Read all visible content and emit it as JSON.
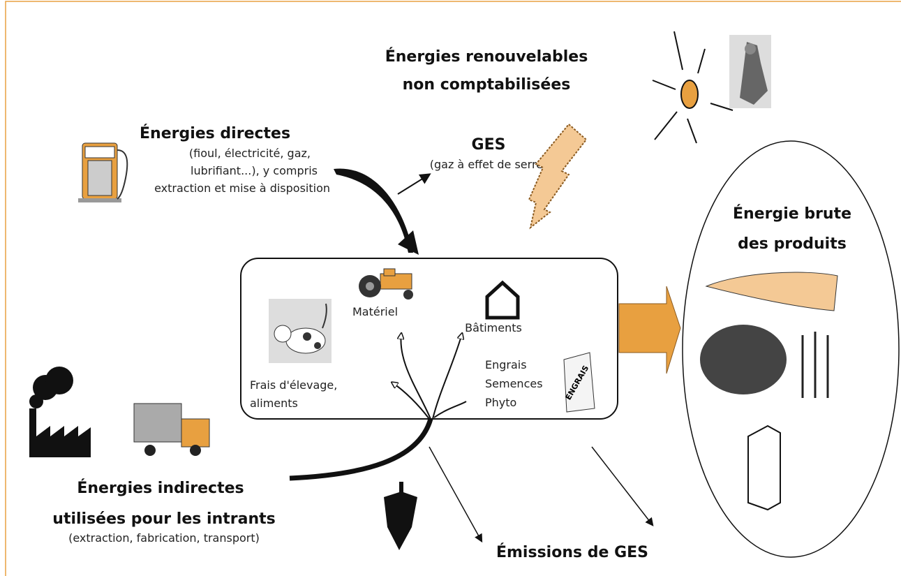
{
  "renewable": {
    "lines": [
      "Énergies renouvelables",
      "non comptabilisées"
    ]
  },
  "direct": {
    "title": "Énergies directes",
    "details": [
      "(fioul, électricité, gaz,",
      "lubrifiant...), y compris",
      "extraction et mise à disposition"
    ]
  },
  "ghg": {
    "title": "GES",
    "subtitle": "(gaz à effet de serre)"
  },
  "farm": {
    "equipment": "Matériel",
    "buildings": "Bâtiments",
    "livestock": [
      "Frais d'élevage,",
      "aliments"
    ],
    "inputs": [
      "Engrais",
      "Semences",
      "Phyto"
    ],
    "bag_label": "ENGRAIS"
  },
  "products": {
    "title": [
      "Énergie brute",
      "des produits"
    ]
  },
  "indirect": {
    "title": [
      "Énergies indirectes",
      "utilisées pour les intrants"
    ],
    "details": "(extraction, fabrication, transport)"
  },
  "emissions": "Émissions de GES"
}
